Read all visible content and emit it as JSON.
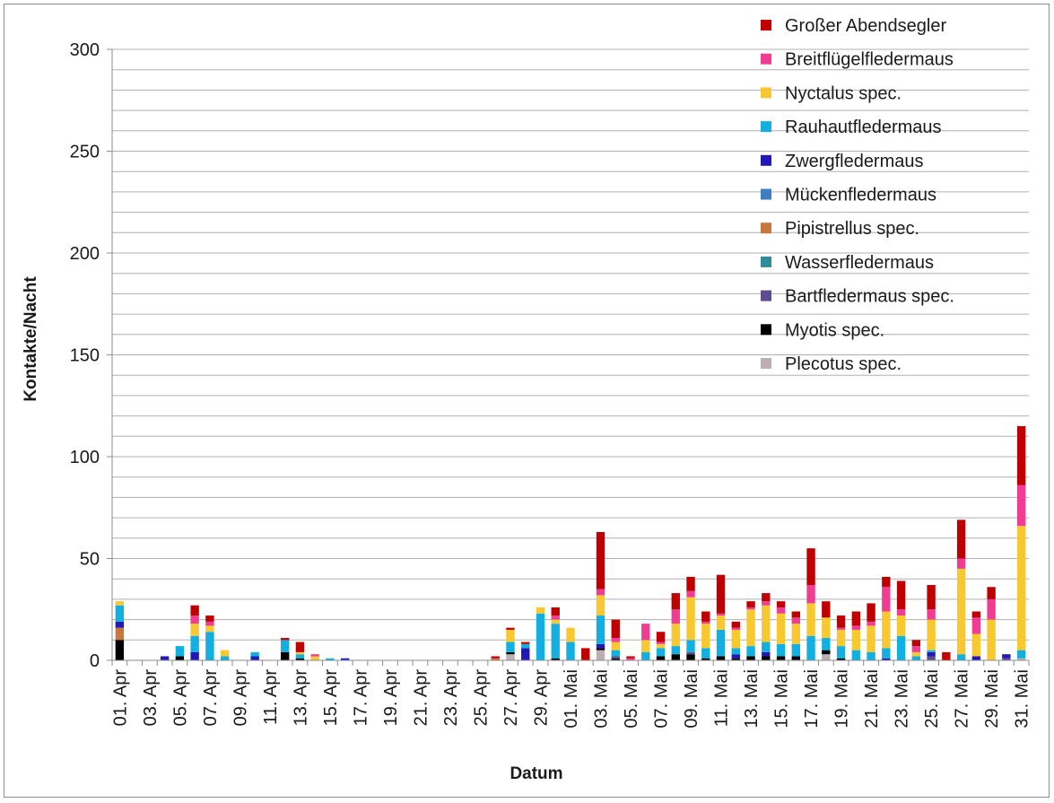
{
  "chart_data": {
    "type": "bar",
    "stacked": true,
    "xlabel": "Datum",
    "ylabel": "Kontakte/Nacht",
    "ylim": [
      0,
      300
    ],
    "y_ticks": [
      0,
      50,
      100,
      150,
      200,
      250,
      300
    ],
    "grid": true,
    "minor_gridlines_step": 10,
    "legend_position": "top-right",
    "categories": [
      "01. Apr",
      "02. Apr",
      "03. Apr",
      "04. Apr",
      "05. Apr",
      "06. Apr",
      "07. Apr",
      "08. Apr",
      "09. Apr",
      "10. Apr",
      "11. Apr",
      "12. Apr",
      "13. Apr",
      "14. Apr",
      "15. Apr",
      "16. Apr",
      "17. Apr",
      "18. Apr",
      "19. Apr",
      "20. Apr",
      "21. Apr",
      "22. Apr",
      "23. Apr",
      "24. Apr",
      "25. Apr",
      "26. Apr",
      "27. Apr",
      "28. Apr",
      "29. Apr",
      "30. Apr",
      "01. Mai",
      "02. Mai",
      "03. Mai",
      "04. Mai",
      "05. Mai",
      "06. Mai",
      "07. Mai",
      "08. Mai",
      "09. Mai",
      "10. Mai",
      "11. Mai",
      "12. Mai",
      "13. Mai",
      "14. Mai",
      "15. Mai",
      "16. Mai",
      "17. Mai",
      "18. Mai",
      "19. Mai",
      "20. Mai",
      "21. Mai",
      "22. Mai",
      "23. Mai",
      "24. Mai",
      "25. Mai",
      "26. Mai",
      "27. Mai",
      "28. Mai",
      "29. Mai",
      "30. Mai",
      "31. Mai"
    ],
    "tick_labels": [
      "01. Apr",
      "03. Apr",
      "05. Apr",
      "07. Apr",
      "09. Apr",
      "11. Apr",
      "13. Apr",
      "15. Apr",
      "17. Apr",
      "19. Apr",
      "21. Apr",
      "23. Apr",
      "25. Apr",
      "27. Apr",
      "29. Apr",
      "01. Mai",
      "03. Mai",
      "05. Mai",
      "07. Mai",
      "09. Mai",
      "11. Mai",
      "13. Mai",
      "15. Mai",
      "17. Mai",
      "19. Mai",
      "21. Mai",
      "23. Mai",
      "25. Mai",
      "27. Mai",
      "29. Mai",
      "31. Mai"
    ],
    "series": [
      {
        "name": "Plecotus spec.",
        "color": "#bcaeb2",
        "values": [
          0,
          0,
          0,
          0,
          0,
          0,
          0,
          0,
          0,
          0,
          0,
          0,
          0,
          0,
          0,
          0,
          0,
          0,
          0,
          0,
          0,
          0,
          0,
          0,
          0,
          0,
          3,
          0,
          0,
          0,
          0,
          0,
          5,
          0,
          0,
          0,
          0,
          0,
          0,
          0,
          0,
          0,
          0,
          0,
          0,
          0,
          0,
          3,
          0,
          0,
          0,
          0,
          0,
          0,
          0,
          0,
          0,
          0,
          0,
          0,
          1
        ]
      },
      {
        "name": "Myotis spec.",
        "color": "#000000",
        "values": [
          10,
          0,
          0,
          0,
          2,
          0,
          0,
          0,
          0,
          0,
          0,
          4,
          1,
          0,
          0,
          0,
          0,
          0,
          0,
          0,
          0,
          0,
          0,
          0,
          0,
          0,
          1,
          0,
          0,
          1,
          0,
          0,
          1,
          1,
          0,
          0,
          2,
          3,
          3,
          1,
          2,
          1,
          2,
          2,
          2,
          2,
          0,
          2,
          1,
          0,
          0,
          0,
          0,
          0,
          0,
          0,
          0,
          0,
          0,
          0,
          0
        ]
      },
      {
        "name": "Bartfledermaus spec.",
        "color": "#5e4d8e",
        "values": [
          0,
          0,
          0,
          0,
          0,
          0,
          0,
          0,
          0,
          0,
          0,
          0,
          0,
          0,
          0,
          0,
          0,
          0,
          0,
          0,
          0,
          0,
          0,
          0,
          0,
          0,
          0,
          0,
          0,
          0,
          0,
          0,
          0,
          1,
          0,
          0,
          0,
          0,
          1,
          0,
          0,
          0,
          0,
          0,
          0,
          0,
          0,
          0,
          0,
          0,
          0,
          0,
          0,
          0,
          2,
          0,
          0,
          0,
          0,
          1,
          0
        ]
      },
      {
        "name": "Wasserfledermaus",
        "color": "#2e8b9a",
        "values": [
          0,
          0,
          0,
          0,
          0,
          0,
          0,
          0,
          0,
          0,
          0,
          0,
          0,
          0,
          0,
          0,
          0,
          0,
          0,
          0,
          0,
          0,
          0,
          0,
          0,
          0,
          0,
          0,
          0,
          0,
          0,
          0,
          0,
          0,
          0,
          0,
          0,
          0,
          0,
          0,
          0,
          0,
          0,
          0,
          0,
          0,
          0,
          0,
          0,
          0,
          0,
          0,
          0,
          0,
          0,
          0,
          0,
          0,
          0,
          0,
          0
        ]
      },
      {
        "name": "Pipistrellus spec.",
        "color": "#c8773f",
        "values": [
          6,
          0,
          0,
          0,
          0,
          0,
          0,
          0,
          0,
          0,
          0,
          0,
          0,
          0,
          0,
          0,
          0,
          0,
          0,
          0,
          0,
          0,
          0,
          0,
          0,
          1,
          0,
          0,
          0,
          0,
          0,
          0,
          0,
          0,
          0,
          0,
          0,
          0,
          0,
          0,
          0,
          0,
          0,
          0,
          0,
          0,
          0,
          0,
          0,
          0,
          0,
          0,
          0,
          0,
          0,
          0,
          0,
          0,
          0,
          0,
          0
        ]
      },
      {
        "name": "Mückenfledermaus",
        "color": "#3f7fc0",
        "values": [
          0,
          0,
          0,
          0,
          0,
          0,
          0,
          0,
          0,
          0,
          0,
          0,
          0,
          0,
          0,
          0,
          0,
          0,
          0,
          0,
          0,
          0,
          0,
          0,
          0,
          0,
          0,
          0,
          0,
          0,
          0,
          0,
          0,
          0,
          0,
          0,
          0,
          0,
          0,
          0,
          0,
          0,
          0,
          0,
          0,
          0,
          0,
          0,
          0,
          0,
          0,
          0,
          0,
          0,
          0,
          0,
          0,
          0,
          0,
          0,
          0
        ]
      },
      {
        "name": "Zwergfledermaus",
        "color": "#2218b8",
        "values": [
          3,
          0,
          0,
          2,
          0,
          4,
          0,
          0,
          0,
          2,
          0,
          0,
          0,
          0,
          0,
          1,
          0,
          0,
          0,
          0,
          0,
          0,
          0,
          0,
          0,
          0,
          0,
          6,
          0,
          0,
          0,
          0,
          2,
          0,
          0,
          0,
          0,
          0,
          0,
          0,
          0,
          2,
          0,
          2,
          0,
          0,
          0,
          0,
          0,
          0,
          0,
          1,
          0,
          0,
          2,
          0,
          0,
          2,
          0,
          2,
          0
        ]
      },
      {
        "name": "Rauhautfledermaus",
        "color": "#12b0e0",
        "values": [
          8,
          0,
          0,
          0,
          5,
          8,
          14,
          2,
          0,
          2,
          0,
          6,
          2,
          0,
          1,
          0,
          0,
          0,
          0,
          0,
          0,
          0,
          0,
          0,
          0,
          0,
          5,
          2,
          23,
          17,
          9,
          0,
          14,
          3,
          0,
          4,
          4,
          4,
          6,
          5,
          13,
          3,
          5,
          5,
          6,
          6,
          12,
          6,
          6,
          5,
          4,
          5,
          12,
          2,
          1,
          0,
          3,
          0,
          0,
          0,
          4
        ]
      },
      {
        "name": "Nyctalus spec.",
        "color": "#f7c830",
        "values": [
          2,
          0,
          0,
          0,
          0,
          6,
          3,
          3,
          0,
          0,
          0,
          0,
          1,
          2,
          0,
          0,
          0,
          0,
          0,
          0,
          0,
          0,
          0,
          0,
          0,
          0,
          6,
          0,
          3,
          2,
          7,
          0,
          10,
          4,
          0,
          6,
          2,
          11,
          21,
          12,
          7,
          9,
          18,
          18,
          15,
          10,
          16,
          10,
          8,
          10,
          13,
          18,
          10,
          2,
          15,
          0,
          42,
          11,
          20,
          0,
          61
        ]
      },
      {
        "name": "Breitflügelfledermaus",
        "color": "#f03d93",
        "values": [
          0,
          0,
          0,
          0,
          0,
          4,
          2,
          0,
          0,
          0,
          0,
          0,
          0,
          1,
          0,
          0,
          0,
          0,
          0,
          0,
          0,
          0,
          0,
          0,
          0,
          0,
          0,
          0,
          0,
          2,
          0,
          0,
          3,
          2,
          1,
          8,
          1,
          7,
          3,
          1,
          1,
          1,
          1,
          2,
          3,
          3,
          9,
          0,
          1,
          2,
          2,
          12,
          3,
          3,
          5,
          0,
          5,
          8,
          10,
          0,
          20
        ]
      },
      {
        "name": "Großer Abendsegler",
        "color": "#c00000",
        "values": [
          0,
          0,
          0,
          0,
          0,
          5,
          3,
          0,
          0,
          0,
          0,
          1,
          5,
          0,
          0,
          0,
          0,
          0,
          0,
          0,
          0,
          0,
          0,
          0,
          0,
          1,
          1,
          1,
          0,
          4,
          0,
          6,
          28,
          9,
          1,
          0,
          5,
          8,
          7,
          5,
          19,
          3,
          3,
          4,
          3,
          3,
          18,
          8,
          6,
          7,
          9,
          5,
          14,
          3,
          12,
          4,
          19,
          3,
          6,
          0,
          29
        ]
      }
    ]
  }
}
